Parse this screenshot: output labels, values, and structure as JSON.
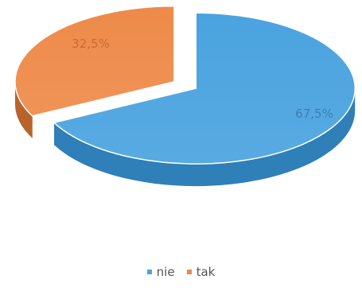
{
  "chart_data": {
    "type": "pie",
    "style": "3d-exploded",
    "categories": [
      "nie",
      "tak"
    ],
    "values": [
      67.5,
      32.5
    ],
    "data_labels": [
      "67,5%",
      "32,5%"
    ],
    "colors": [
      "#4aa3df",
      "#ee8a49"
    ],
    "legend_position": "bottom",
    "title": ""
  }
}
